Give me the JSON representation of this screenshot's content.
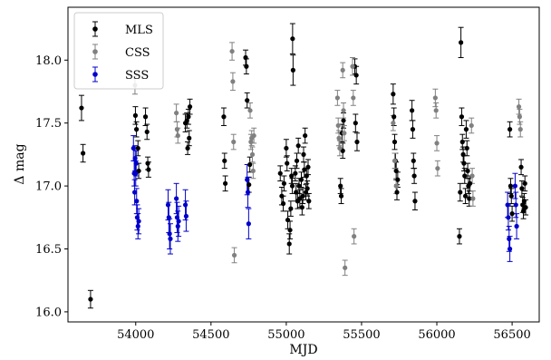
{
  "chart_data": {
    "type": "scatter",
    "xlabel": "MJD",
    "ylabel": "Δ mag",
    "xlim": [
      53550,
      56680
    ],
    "ylim": [
      15.92,
      18.42
    ],
    "x_ticks": [
      54000,
      54500,
      55000,
      55500,
      56000,
      56500
    ],
    "y_ticks": [
      16.0,
      16.5,
      17.0,
      17.5,
      18.0
    ],
    "x_tick_labels": [
      "54000",
      "54500",
      "55000",
      "55500",
      "56000",
      "56500"
    ],
    "y_tick_labels": [
      "16.0",
      "16.5",
      "17.0",
      "17.5",
      "18.0"
    ],
    "grid": false,
    "legend_position": "top-left",
    "series": [
      {
        "name": "MLS",
        "color": "#000000",
        "points": [
          [
            53640,
            17.62,
            0.1
          ],
          [
            53650,
            17.26,
            0.07
          ],
          [
            53700,
            16.1,
            0.07
          ],
          [
            53998,
            17.56,
            0.07
          ],
          [
            54005,
            17.45,
            0.06
          ],
          [
            54015,
            17.3,
            0.06
          ],
          [
            54020,
            17.12,
            0.06
          ],
          [
            54065,
            17.55,
            0.07
          ],
          [
            54075,
            17.43,
            0.06
          ],
          [
            54080,
            17.18,
            0.05
          ],
          [
            54085,
            17.13,
            0.06
          ],
          [
            54330,
            17.5,
            0.07
          ],
          [
            54340,
            17.52,
            0.06
          ],
          [
            54345,
            17.3,
            0.05
          ],
          [
            54350,
            17.55,
            0.06
          ],
          [
            54355,
            17.38,
            0.06
          ],
          [
            54360,
            17.63,
            0.06
          ],
          [
            54585,
            17.55,
            0.07
          ],
          [
            54590,
            17.2,
            0.06
          ],
          [
            54595,
            17.02,
            0.06
          ],
          [
            54730,
            18.02,
            0.06
          ],
          [
            54735,
            17.95,
            0.06
          ],
          [
            54740,
            17.68,
            0.06
          ],
          [
            54752,
            17.01,
            0.06
          ],
          [
            54758,
            17.17,
            0.06
          ],
          [
            54960,
            17.1,
            0.06
          ],
          [
            54970,
            16.92,
            0.07
          ],
          [
            54980,
            16.86,
            0.06
          ],
          [
            54985,
            17.02,
            0.06
          ],
          [
            55000,
            17.3,
            0.07
          ],
          [
            55005,
            17.18,
            0.06
          ],
          [
            55010,
            16.73,
            0.07
          ],
          [
            55020,
            16.54,
            0.08
          ],
          [
            55025,
            16.65,
            0.07
          ],
          [
            55030,
            16.82,
            0.06
          ],
          [
            55035,
            17.08,
            0.06
          ],
          [
            55040,
            17.0,
            0.06
          ],
          [
            55042,
            18.17,
            0.12
          ],
          [
            55045,
            17.92,
            0.12
          ],
          [
            55060,
            17.1,
            0.06
          ],
          [
            55065,
            16.95,
            0.07
          ],
          [
            55070,
            17.2,
            0.06
          ],
          [
            55075,
            16.88,
            0.06
          ],
          [
            55080,
            17.32,
            0.06
          ],
          [
            55085,
            17.0,
            0.06
          ],
          [
            55090,
            16.9,
            0.07
          ],
          [
            55100,
            17.05,
            0.06
          ],
          [
            55105,
            16.83,
            0.06
          ],
          [
            55110,
            16.92,
            0.06
          ],
          [
            55115,
            17.25,
            0.06
          ],
          [
            55120,
            17.13,
            0.06
          ],
          [
            55125,
            17.4,
            0.06
          ],
          [
            55130,
            16.95,
            0.06
          ],
          [
            55135,
            17.08,
            0.06
          ],
          [
            55140,
            16.98,
            0.06
          ],
          [
            55145,
            17.15,
            0.06
          ],
          [
            55150,
            16.88,
            0.06
          ],
          [
            55360,
            17.0,
            0.06
          ],
          [
            55365,
            16.92,
            0.06
          ],
          [
            55370,
            17.42,
            0.07
          ],
          [
            55375,
            17.28,
            0.06
          ],
          [
            55380,
            17.52,
            0.06
          ],
          [
            55455,
            17.95,
            0.06
          ],
          [
            55460,
            17.5,
            0.07
          ],
          [
            55465,
            17.88,
            0.07
          ],
          [
            55470,
            17.35,
            0.07
          ],
          [
            55710,
            17.73,
            0.08
          ],
          [
            55715,
            17.55,
            0.07
          ],
          [
            55720,
            17.35,
            0.06
          ],
          [
            55725,
            17.2,
            0.06
          ],
          [
            55730,
            17.12,
            0.07
          ],
          [
            55735,
            16.95,
            0.06
          ],
          [
            55740,
            17.05,
            0.06
          ],
          [
            55835,
            17.6,
            0.08
          ],
          [
            55840,
            17.45,
            0.07
          ],
          [
            55845,
            17.2,
            0.06
          ],
          [
            55850,
            17.08,
            0.06
          ],
          [
            55855,
            16.88,
            0.07
          ],
          [
            56150,
            16.6,
            0.06
          ],
          [
            56155,
            16.95,
            0.07
          ],
          [
            56160,
            18.14,
            0.12
          ],
          [
            56165,
            17.55,
            0.07
          ],
          [
            56170,
            17.35,
            0.06
          ],
          [
            56175,
            17.25,
            0.06
          ],
          [
            56180,
            17.18,
            0.06
          ],
          [
            56185,
            17.08,
            0.06
          ],
          [
            56190,
            16.92,
            0.06
          ],
          [
            56195,
            17.45,
            0.07
          ],
          [
            56200,
            17.3,
            0.06
          ],
          [
            56205,
            17.12,
            0.06
          ],
          [
            56210,
            17.0,
            0.06
          ],
          [
            56215,
            16.9,
            0.06
          ],
          [
            56220,
            17.02,
            0.06
          ],
          [
            56485,
            17.45,
            0.06
          ],
          [
            56490,
            17.0,
            0.06
          ],
          [
            56495,
            16.92,
            0.06
          ],
          [
            56500,
            16.78,
            0.06
          ],
          [
            56560,
            17.15,
            0.06
          ],
          [
            56565,
            16.98,
            0.06
          ],
          [
            56570,
            16.85,
            0.06
          ],
          [
            56575,
            16.8,
            0.06
          ],
          [
            56580,
            16.88,
            0.06
          ],
          [
            56585,
            17.02,
            0.06
          ],
          [
            56590,
            16.83,
            0.06
          ]
        ]
      },
      {
        "name": "CSS",
        "color": "#808080",
        "points": [
          [
            53995,
            17.8,
            0.07
          ],
          [
            54270,
            17.58,
            0.07
          ],
          [
            54275,
            17.45,
            0.06
          ],
          [
            54280,
            17.4,
            0.06
          ],
          [
            54640,
            18.07,
            0.07
          ],
          [
            54645,
            17.83,
            0.07
          ],
          [
            54650,
            17.35,
            0.06
          ],
          [
            54655,
            16.45,
            0.06
          ],
          [
            54760,
            17.6,
            0.06
          ],
          [
            54765,
            17.35,
            0.06
          ],
          [
            54770,
            17.38,
            0.06
          ],
          [
            54775,
            17.25,
            0.06
          ],
          [
            54780,
            17.12,
            0.06
          ],
          [
            54785,
            17.4,
            0.06
          ],
          [
            55340,
            17.7,
            0.06
          ],
          [
            55345,
            17.48,
            0.06
          ],
          [
            55350,
            17.38,
            0.06
          ],
          [
            55355,
            17.3,
            0.06
          ],
          [
            55375,
            17.92,
            0.06
          ],
          [
            55380,
            17.6,
            0.06
          ],
          [
            55385,
            17.42,
            0.06
          ],
          [
            55390,
            16.35,
            0.06
          ],
          [
            55440,
            17.95,
            0.07
          ],
          [
            55445,
            17.7,
            0.06
          ],
          [
            55450,
            16.6,
            0.06
          ],
          [
            55710,
            17.5,
            0.06
          ],
          [
            55720,
            17.2,
            0.06
          ],
          [
            55730,
            17.0,
            0.06
          ],
          [
            55990,
            17.7,
            0.07
          ],
          [
            55995,
            17.6,
            0.06
          ],
          [
            56000,
            17.34,
            0.06
          ],
          [
            56005,
            17.14,
            0.06
          ],
          [
            56230,
            17.48,
            0.06
          ],
          [
            56235,
            17.08,
            0.06
          ],
          [
            56240,
            16.9,
            0.06
          ],
          [
            56545,
            17.63,
            0.06
          ],
          [
            56550,
            17.55,
            0.06
          ],
          [
            56555,
            17.45,
            0.06
          ]
        ]
      },
      {
        "name": "SSS",
        "color": "#0000cc",
        "points": [
          [
            53985,
            17.3,
            0.1
          ],
          [
            53990,
            17.1,
            0.1
          ],
          [
            53993,
            16.95,
            0.1
          ],
          [
            53996,
            17.22,
            0.1
          ],
          [
            54000,
            17.1,
            0.1
          ],
          [
            54003,
            17.18,
            0.1
          ],
          [
            54006,
            16.88,
            0.1
          ],
          [
            54010,
            16.75,
            0.1
          ],
          [
            54015,
            16.68,
            0.1
          ],
          [
            54020,
            16.72,
            0.1
          ],
          [
            54215,
            16.85,
            0.12
          ],
          [
            54220,
            16.75,
            0.12
          ],
          [
            54225,
            16.62,
            0.12
          ],
          [
            54230,
            16.58,
            0.12
          ],
          [
            54270,
            16.9,
            0.12
          ],
          [
            54275,
            16.75,
            0.12
          ],
          [
            54280,
            16.68,
            0.12
          ],
          [
            54285,
            16.72,
            0.12
          ],
          [
            54330,
            16.85,
            0.12
          ],
          [
            54335,
            16.76,
            0.12
          ],
          [
            54740,
            17.05,
            0.12
          ],
          [
            54745,
            16.95,
            0.12
          ],
          [
            54750,
            16.7,
            0.12
          ],
          [
            56470,
            16.85,
            0.1
          ],
          [
            56475,
            16.75,
            0.1
          ],
          [
            56480,
            16.58,
            0.1
          ],
          [
            56485,
            16.5,
            0.1
          ],
          [
            56520,
            17.0,
            0.1
          ],
          [
            56525,
            16.85,
            0.1
          ],
          [
            56530,
            16.68,
            0.1
          ]
        ]
      }
    ]
  }
}
